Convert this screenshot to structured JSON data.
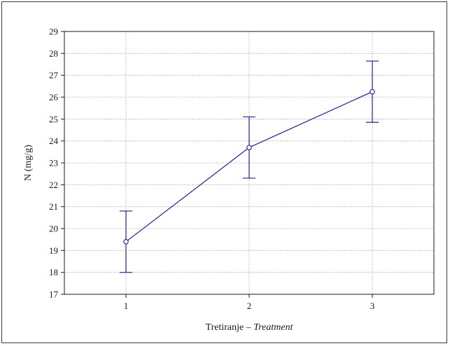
{
  "chart_data": {
    "type": "line",
    "title": "",
    "xlabel_main": "Tretiranje – ",
    "xlabel_italic": "Treatment",
    "ylabel": "N (mg/g)",
    "categories": [
      "1",
      "2",
      "3"
    ],
    "x": [
      1,
      2,
      3
    ],
    "series": [
      {
        "values": [
          19.4,
          23.7,
          26.25
        ],
        "error_low": [
          18.0,
          22.3,
          24.85
        ],
        "error_high": [
          20.8,
          25.1,
          27.65
        ]
      }
    ],
    "xlim": [
      0.5,
      3.5
    ],
    "ylim": [
      17,
      29
    ],
    "yticks": [
      17,
      18,
      19,
      20,
      21,
      22,
      23,
      24,
      25,
      26,
      27,
      28,
      29
    ],
    "grid": true,
    "legend": "none",
    "colors": {
      "series": "#1f1f8f",
      "grid": "#9a9a9a",
      "axis": "#1a1a1a"
    }
  }
}
